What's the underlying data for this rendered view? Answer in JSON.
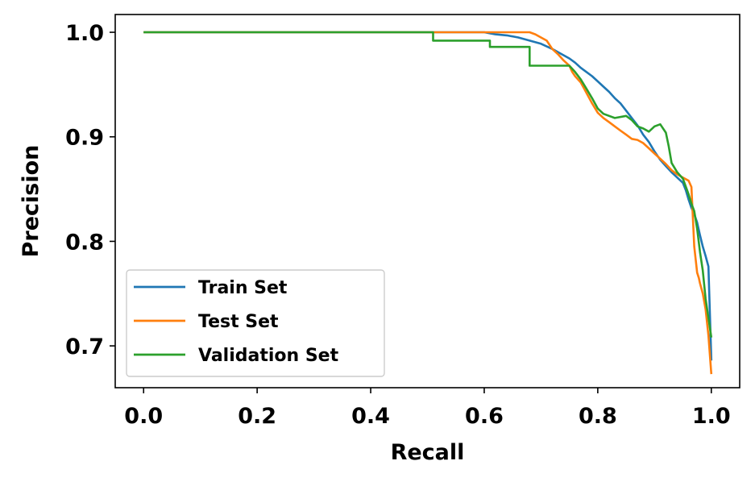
{
  "chart_data": {
    "type": "line",
    "title": "",
    "xlabel": "Recall",
    "ylabel": "Precision",
    "xlim": [
      -0.05,
      1.05
    ],
    "ylim": [
      0.66,
      1.017
    ],
    "xticks": [
      "0.0",
      "0.2",
      "0.4",
      "0.6",
      "0.8",
      "1.0"
    ],
    "yticks": [
      "0.7",
      "0.8",
      "0.9",
      "1.0"
    ],
    "grid": false,
    "legend_position": "lower-left",
    "series": [
      {
        "name": "Train Set",
        "color": "#1f77b4",
        "x": [
          0.0,
          0.6,
          0.61,
          0.62,
          0.64,
          0.66,
          0.68,
          0.7,
          0.72,
          0.74,
          0.75,
          0.76,
          0.77,
          0.78,
          0.79,
          0.8,
          0.81,
          0.82,
          0.83,
          0.84,
          0.85,
          0.86,
          0.87,
          0.88,
          0.89,
          0.9,
          0.91,
          0.92,
          0.93,
          0.94,
          0.95,
          0.955,
          0.96,
          0.965,
          0.97,
          0.975,
          0.98,
          0.985,
          0.99,
          0.995,
          1.0
        ],
        "y": [
          1.0,
          1.0,
          0.999,
          0.998,
          0.997,
          0.995,
          0.992,
          0.989,
          0.984,
          0.978,
          0.975,
          0.971,
          0.966,
          0.962,
          0.958,
          0.953,
          0.948,
          0.943,
          0.937,
          0.932,
          0.925,
          0.918,
          0.911,
          0.902,
          0.895,
          0.886,
          0.878,
          0.872,
          0.866,
          0.861,
          0.856,
          0.849,
          0.84,
          0.832,
          0.826,
          0.818,
          0.806,
          0.795,
          0.786,
          0.776,
          0.686
        ]
      },
      {
        "name": "Test Set",
        "color": "#ff7f0e",
        "x": [
          0.0,
          0.68,
          0.69,
          0.7,
          0.71,
          0.715,
          0.72,
          0.73,
          0.74,
          0.75,
          0.755,
          0.76,
          0.77,
          0.775,
          0.78,
          0.79,
          0.8,
          0.81,
          0.82,
          0.83,
          0.84,
          0.85,
          0.86,
          0.87,
          0.88,
          0.89,
          0.9,
          0.91,
          0.92,
          0.93,
          0.94,
          0.95,
          0.96,
          0.965,
          0.97,
          0.975,
          0.978,
          0.98,
          0.985,
          0.99,
          0.995,
          1.0
        ],
        "y": [
          1.0,
          1.0,
          0.998,
          0.995,
          0.992,
          0.988,
          0.984,
          0.979,
          0.973,
          0.968,
          0.962,
          0.958,
          0.952,
          0.947,
          0.942,
          0.932,
          0.923,
          0.918,
          0.914,
          0.91,
          0.906,
          0.902,
          0.898,
          0.897,
          0.894,
          0.889,
          0.884,
          0.879,
          0.874,
          0.868,
          0.864,
          0.861,
          0.858,
          0.852,
          0.795,
          0.77,
          0.765,
          0.76,
          0.75,
          0.735,
          0.71,
          0.673
        ]
      },
      {
        "name": "Validation Set",
        "color": "#2ca02c",
        "x": [
          0.0,
          0.51,
          0.51,
          0.61,
          0.61,
          0.68,
          0.68,
          0.75,
          0.76,
          0.77,
          0.78,
          0.79,
          0.8,
          0.81,
          0.83,
          0.85,
          0.86,
          0.87,
          0.88,
          0.89,
          0.9,
          0.91,
          0.92,
          0.925,
          0.93,
          0.94,
          0.95,
          0.96,
          0.965,
          0.97,
          0.975,
          0.98,
          0.985,
          0.99,
          1.0
        ],
        "y": [
          1.0,
          1.0,
          0.992,
          0.992,
          0.986,
          0.986,
          0.968,
          0.968,
          0.962,
          0.955,
          0.946,
          0.937,
          0.927,
          0.922,
          0.918,
          0.92,
          0.916,
          0.91,
          0.908,
          0.905,
          0.91,
          0.912,
          0.904,
          0.891,
          0.875,
          0.866,
          0.86,
          0.845,
          0.836,
          0.829,
          0.812,
          0.79,
          0.772,
          0.745,
          0.708
        ]
      }
    ]
  }
}
